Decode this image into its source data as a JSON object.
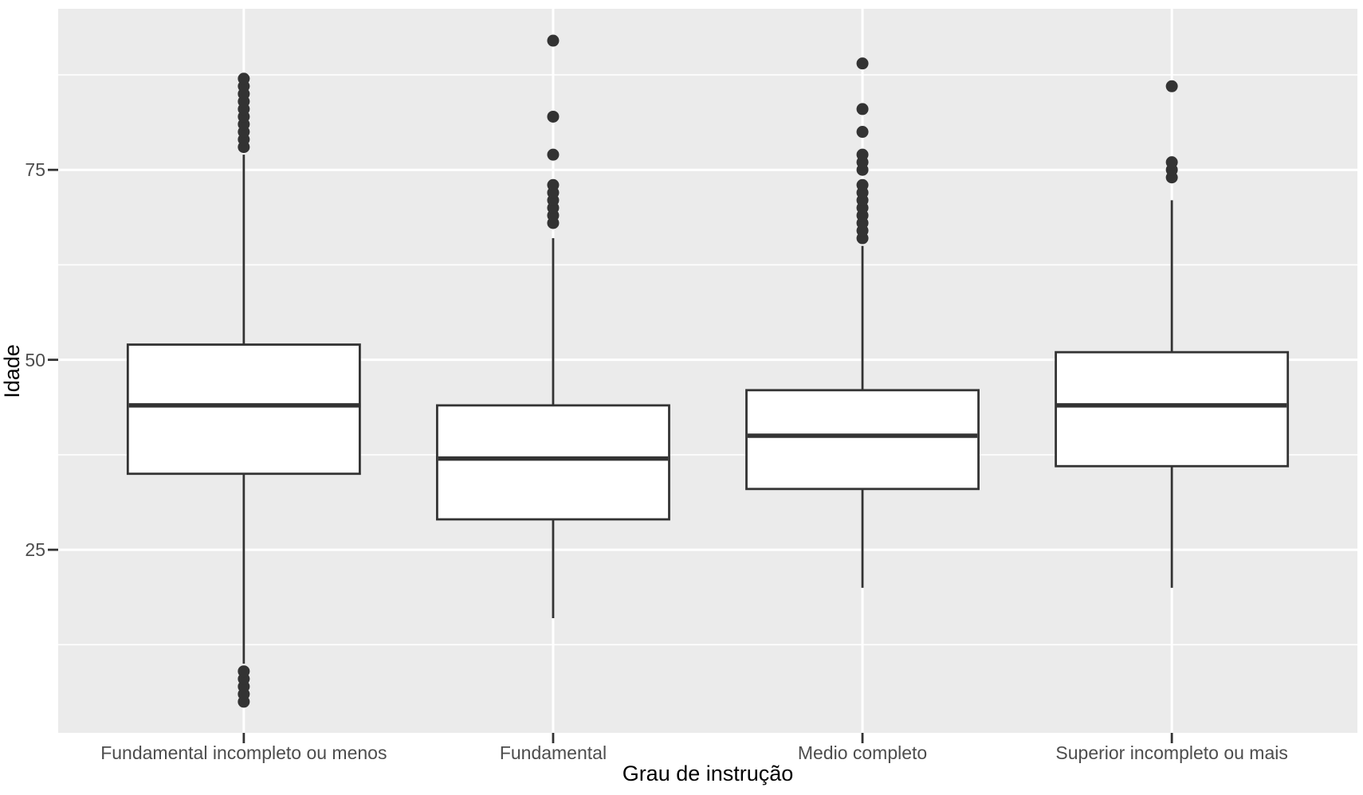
{
  "chart_data": {
    "type": "boxplot",
    "title": "",
    "xlabel": "Grau de instrução",
    "ylabel": "Idade",
    "ylim": [
      0.9,
      96.2
    ],
    "y_ticks": [
      {
        "value": 25,
        "label": "25"
      },
      {
        "value": 50,
        "label": "50"
      },
      {
        "value": 75,
        "label": "75"
      }
    ],
    "y_minor_gridlines": [
      12.5,
      37.5,
      62.5,
      87.5
    ],
    "grid": "on",
    "legend_position": "none",
    "categories": [
      "Fundamental incompleto ou menos",
      "Fundamental",
      "Medio completo",
      "Superior incompleto ou mais"
    ],
    "series": [
      {
        "category": "Fundamental incompleto ou menos",
        "whisker_low": 10,
        "q1": 35,
        "median": 44,
        "q3": 52,
        "whisker_high": 77,
        "outliers_high": [
          78,
          79,
          80,
          81,
          82,
          83,
          84,
          85,
          86,
          87
        ],
        "outliers_low": [
          5,
          6,
          7,
          8,
          9
        ]
      },
      {
        "category": "Fundamental",
        "whisker_low": 16,
        "q1": 29,
        "median": 37,
        "q3": 44,
        "whisker_high": 66,
        "outliers_high": [
          68,
          69,
          70,
          71,
          72,
          73,
          77,
          82,
          92
        ],
        "outliers_low": []
      },
      {
        "category": "Medio completo",
        "whisker_low": 20,
        "q1": 33,
        "median": 40,
        "q3": 46,
        "whisker_high": 65,
        "outliers_high": [
          66,
          67,
          68,
          69,
          70,
          71,
          72,
          73,
          75,
          76,
          77,
          80,
          83,
          89
        ],
        "outliers_low": []
      },
      {
        "category": "Superior incompleto ou mais",
        "whisker_low": 20,
        "q1": 36,
        "median": 44,
        "q3": 51,
        "whisker_high": 71,
        "outliers_high": [
          74,
          75,
          76,
          86
        ],
        "outliers_low": []
      }
    ],
    "style": {
      "panel_bg": "#EBEBEB",
      "grid_major_color": "#FFFFFF",
      "grid_minor_color": "#FFFFFF",
      "box_fill": "#FFFFFF",
      "line_color": "#333333",
      "outlier_color": "#333333",
      "tick_mark_color": "#333333",
      "axis_text_color": "#4D4D4D",
      "axis_title_color": "#000000"
    }
  }
}
